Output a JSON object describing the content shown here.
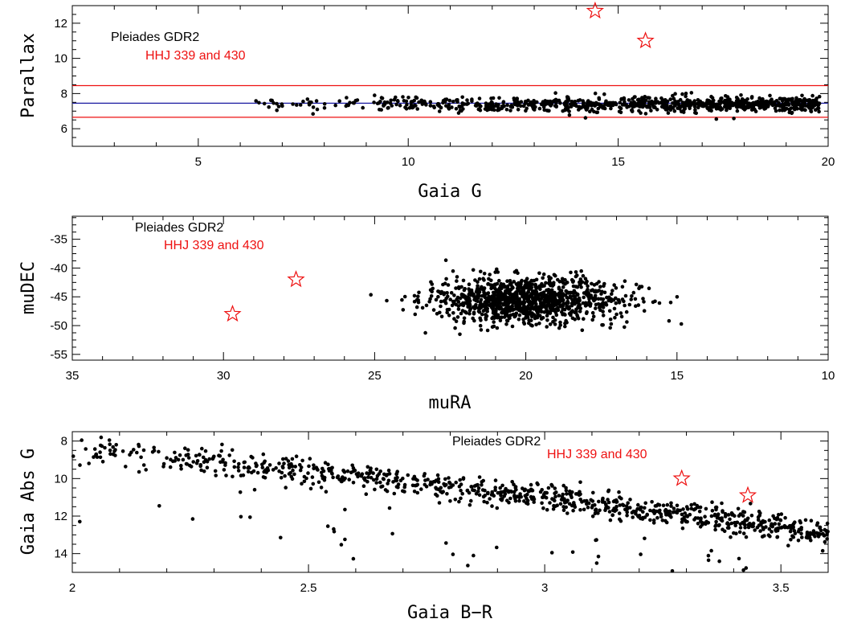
{
  "colors": {
    "data": "#000000",
    "highlight": "#ee1111",
    "mean_line": "#1a1aa0",
    "frame": "#000000"
  },
  "chart_data": [
    {
      "type": "scatter",
      "xlabel": "Gaia G",
      "ylabel": "Parallax",
      "xlim": [
        2,
        20
      ],
      "ylim": [
        5,
        13
      ],
      "x_ticks": [
        5,
        10,
        15,
        20
      ],
      "y_ticks": [
        6,
        8,
        10,
        12
      ],
      "legend": [
        "Pleiades GDR2",
        "HHJ 339 and 430"
      ],
      "legend_placement": "top-left",
      "hlines": [
        {
          "y": 8.45,
          "color": "#ee1111"
        },
        {
          "y": 7.45,
          "color": "#1a1aa0"
        },
        {
          "y": 6.65,
          "color": "#ee1111"
        }
      ],
      "series": [
        {
          "name": "Pleiades GDR2",
          "marker": "dot",
          "color": "#000000",
          "x_range": [
            5.2,
            19.8
          ],
          "y_center": 7.4,
          "y_spread": 0.45,
          "count": 900
        },
        {
          "name": "HHJ 339 and 430",
          "marker": "star",
          "color": "#ee1111",
          "points": [
            [
              14.45,
              12.7
            ],
            [
              15.65,
              11.0
            ]
          ]
        }
      ]
    },
    {
      "type": "scatter",
      "xlabel": "muRA",
      "ylabel": "muDEC",
      "xlim": [
        35,
        10
      ],
      "ylim": [
        -56,
        -31
      ],
      "x_ticks": [
        35,
        30,
        25,
        20,
        15,
        10
      ],
      "y_ticks": [
        -55,
        -50,
        -45,
        -40,
        -35
      ],
      "legend": [
        "Pleiades GDR2",
        "HHJ 339 and 430"
      ],
      "legend_placement": "top-left",
      "series": [
        {
          "name": "Pleiades GDR2",
          "marker": "dot",
          "color": "#000000",
          "x_center": 20.0,
          "x_spread": 1.6,
          "y_center": -45.5,
          "y_spread": 2.0,
          "count": 1100
        },
        {
          "name": "HHJ 339 and 430",
          "marker": "star",
          "color": "#ee1111",
          "points": [
            [
              29.7,
              -48.0
            ],
            [
              27.6,
              -42.0
            ]
          ]
        }
      ]
    },
    {
      "type": "scatter",
      "xlabel": "Gaia B−R",
      "ylabel": "Gaia Abs G",
      "xlim": [
        2,
        3.6
      ],
      "ylim": [
        15,
        7.5
      ],
      "x_ticks": [
        2,
        2.5,
        3,
        3.5
      ],
      "y_ticks": [
        8,
        10,
        12,
        14
      ],
      "legend": [
        "Pleiades GDR2",
        "HHJ 339 and 430"
      ],
      "legend_placement": "top-center",
      "series": [
        {
          "name": "Pleiades GDR2",
          "marker": "dot",
          "color": "#000000",
          "sequence": [
            [
              2.0,
              8.3
            ],
            [
              2.5,
              9.6
            ],
            [
              3.0,
              11.0
            ],
            [
              3.5,
              12.6
            ],
            [
              3.6,
              13.0
            ]
          ],
          "seq_spread": 0.35,
          "count": 950
        },
        {
          "name": "HHJ 339 and 430",
          "marker": "star",
          "color": "#ee1111",
          "points": [
            [
              3.29,
              10.0
            ],
            [
              3.43,
              10.9
            ]
          ]
        }
      ]
    }
  ]
}
